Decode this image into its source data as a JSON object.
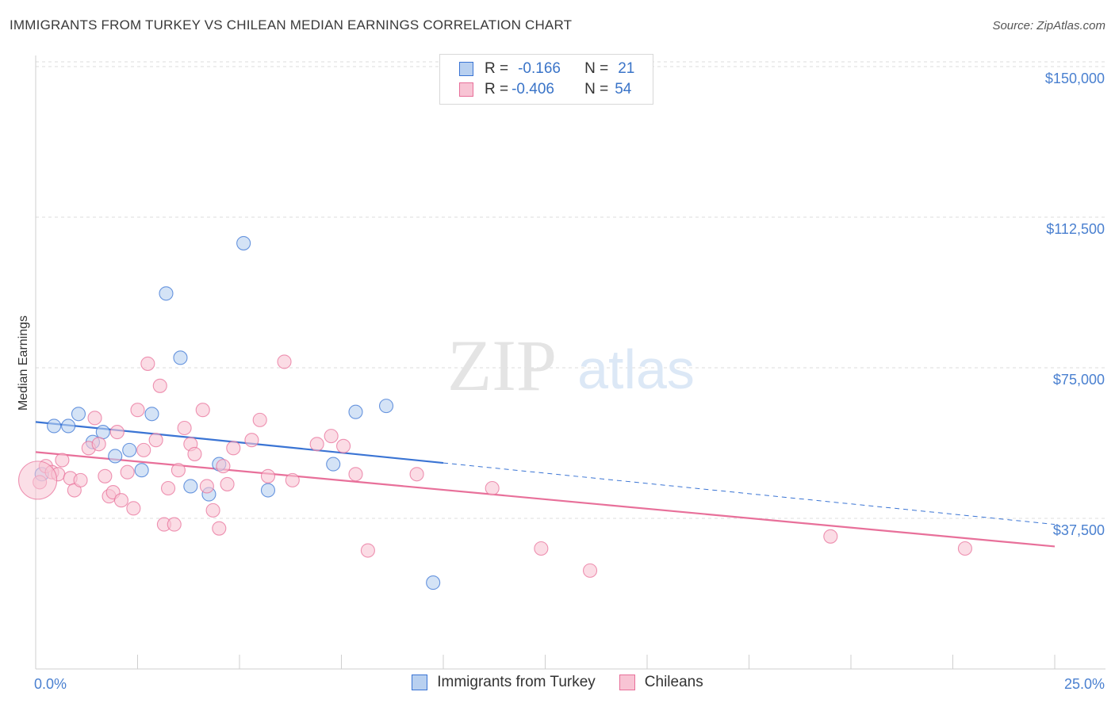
{
  "title": "IMMIGRANTS FROM TURKEY VS CHILEAN MEDIAN EARNINGS CORRELATION CHART",
  "source": "Source: ZipAtlas.com",
  "watermark": {
    "zip": "ZIP",
    "atlas": "atlas"
  },
  "legend": {
    "rows": [
      {
        "r_label": "R =",
        "r_value": "-0.166",
        "n_label": "N =",
        "n_value": "21"
      },
      {
        "r_label": "R =",
        "r_value": "-0.406",
        "n_label": "N =",
        "n_value": "54"
      }
    ]
  },
  "colors": {
    "blue": "#3a74d4",
    "blue_fill": "#b8d0f0",
    "pink": "#e8709a",
    "pink_fill": "#f8c4d4",
    "tick": "#4a80d0",
    "grid": "#dedede"
  },
  "chart_data": {
    "type": "scatter",
    "title": "IMMIGRANTS FROM TURKEY VS CHILEAN MEDIAN EARNINGS CORRELATION CHART",
    "xlabel": "",
    "ylabel": "Median Earnings",
    "xlim": [
      0,
      25
    ],
    "ylim": [
      0,
      155000
    ],
    "x_tick_labels": [
      "0.0%",
      "25.0%"
    ],
    "y_ticks": [
      37500,
      75000,
      112500,
      150000
    ],
    "y_tick_labels": [
      "$37,500",
      "$75,000",
      "$112,500",
      "$150,000"
    ],
    "grid": "horizontal dashed",
    "legend_position": "top-center",
    "series": [
      {
        "name": "Immigrants from Turkey",
        "color": "#3a74d4",
        "r": -0.166,
        "n": 21,
        "trend": {
          "x0": 0,
          "y0": 61500,
          "x_solid_end": 10.0,
          "x1": 25,
          "y1": 36000
        },
        "points": [
          [
            0.15,
            48500
          ],
          [
            0.45,
            60500
          ],
          [
            0.8,
            60500
          ],
          [
            1.05,
            63500
          ],
          [
            1.4,
            56500
          ],
          [
            1.65,
            59000
          ],
          [
            1.95,
            53000
          ],
          [
            2.3,
            54500
          ],
          [
            2.6,
            49500
          ],
          [
            2.85,
            63500
          ],
          [
            3.2,
            93500
          ],
          [
            3.55,
            77500
          ],
          [
            3.8,
            45500
          ],
          [
            4.25,
            43500
          ],
          [
            4.5,
            51000
          ],
          [
            5.1,
            106000
          ],
          [
            5.7,
            44500
          ],
          [
            7.3,
            51000
          ],
          [
            7.85,
            64000
          ],
          [
            8.6,
            65500
          ],
          [
            9.75,
            21500
          ]
        ]
      },
      {
        "name": "Chileans",
        "color": "#e8709a",
        "r": -0.406,
        "n": 54,
        "trend": {
          "x0": 0,
          "y0": 54000,
          "x1": 25,
          "y1": 30500
        },
        "points": [
          [
            0.1,
            46500
          ],
          [
            0.25,
            50500
          ],
          [
            0.4,
            49000
          ],
          [
            0.55,
            48500
          ],
          [
            0.65,
            52000
          ],
          [
            0.85,
            47500
          ],
          [
            0.95,
            44500
          ],
          [
            1.1,
            47000
          ],
          [
            1.3,
            55000
          ],
          [
            1.45,
            62500
          ],
          [
            1.55,
            56000
          ],
          [
            1.7,
            48000
          ],
          [
            1.8,
            43000
          ],
          [
            1.9,
            44000
          ],
          [
            2.0,
            59000
          ],
          [
            2.1,
            42000
          ],
          [
            2.25,
            49000
          ],
          [
            2.4,
            40000
          ],
          [
            2.5,
            64500
          ],
          [
            2.65,
            54500
          ],
          [
            2.75,
            76000
          ],
          [
            2.95,
            57000
          ],
          [
            3.05,
            70500
          ],
          [
            3.15,
            36000
          ],
          [
            3.25,
            45000
          ],
          [
            3.4,
            36000
          ],
          [
            3.5,
            49500
          ],
          [
            3.65,
            60000
          ],
          [
            3.8,
            56000
          ],
          [
            3.9,
            53500
          ],
          [
            4.1,
            64500
          ],
          [
            4.2,
            45500
          ],
          [
            4.35,
            39500
          ],
          [
            4.5,
            35000
          ],
          [
            4.6,
            50500
          ],
          [
            4.7,
            46000
          ],
          [
            4.85,
            55000
          ],
          [
            5.3,
            57000
          ],
          [
            5.5,
            62000
          ],
          [
            5.7,
            48000
          ],
          [
            6.1,
            76500
          ],
          [
            6.3,
            47000
          ],
          [
            6.9,
            56000
          ],
          [
            7.25,
            58000
          ],
          [
            7.55,
            55500
          ],
          [
            7.85,
            48500
          ],
          [
            8.15,
            29500
          ],
          [
            9.35,
            48500
          ],
          [
            11.2,
            45000
          ],
          [
            12.4,
            30000
          ],
          [
            13.6,
            24500
          ],
          [
            19.5,
            33000
          ],
          [
            22.8,
            30000
          ],
          [
            0.05,
            47000
          ]
        ]
      }
    ]
  }
}
